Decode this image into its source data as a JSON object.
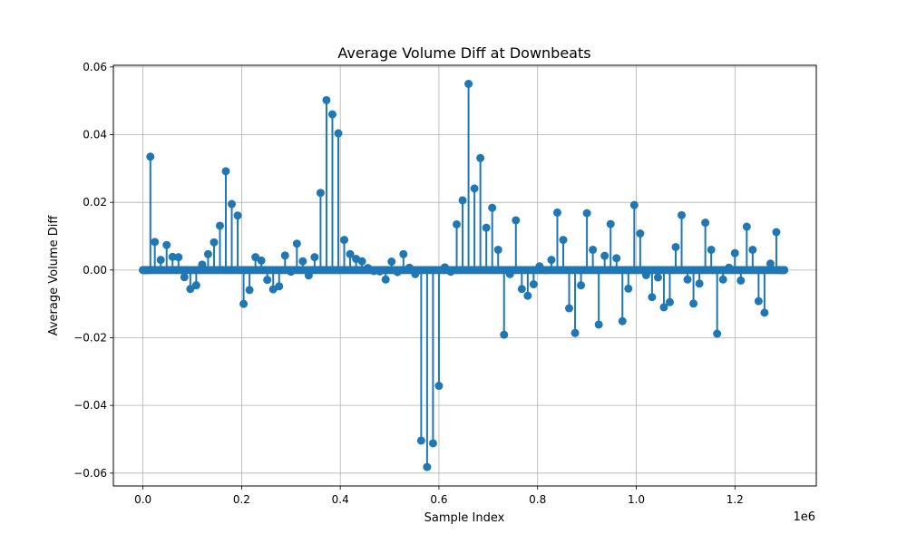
{
  "chart_data": {
    "type": "stem",
    "title": "Average Volume Diff at Downbeats",
    "xlabel": "Sample Index",
    "ylabel": "Average Volume Diff",
    "x_offset_label": "1e6",
    "x_scale": 1000000,
    "xlim": [
      -60000,
      1365000
    ],
    "ylim": [
      -0.0638,
      0.0605
    ],
    "x_ticks": [
      {
        "value": 0,
        "label": "0.0"
      },
      {
        "value": 200000,
        "label": "0.2"
      },
      {
        "value": 400000,
        "label": "0.4"
      },
      {
        "value": 600000,
        "label": "0.6"
      },
      {
        "value": 800000,
        "label": "0.8"
      },
      {
        "value": 1000000,
        "label": "1.0"
      },
      {
        "value": 1200000,
        "label": "1.2"
      }
    ],
    "y_ticks": [
      {
        "value": 0.06,
        "label": "0.06"
      },
      {
        "value": 0.04,
        "label": "0.04"
      },
      {
        "value": 0.02,
        "label": "0.02"
      },
      {
        "value": 0.0,
        "label": "0.00"
      },
      {
        "value": -0.02,
        "label": "−0.02"
      },
      {
        "value": -0.04,
        "label": "−0.04"
      },
      {
        "value": -0.06,
        "label": "−0.06"
      }
    ],
    "grid": true,
    "color": "#1f77b4",
    "baseline": 0,
    "x": [
      0,
      3000,
      6000,
      9000,
      12000,
      15000,
      24000,
      36000,
      48000,
      60000,
      72000,
      84000,
      96000,
      108000,
      120000,
      132000,
      144000,
      156000,
      168000,
      180000,
      192000,
      204000,
      216000,
      228000,
      240000,
      252000,
      264000,
      276000,
      288000,
      300000,
      312000,
      324000,
      336000,
      348000,
      360000,
      372000,
      384000,
      396000,
      408000,
      420000,
      432000,
      444000,
      456000,
      468000,
      480000,
      492000,
      504000,
      516000,
      528000,
      540000,
      552000,
      564000,
      576000,
      588000,
      600000,
      612000,
      624000,
      636000,
      648000,
      660000,
      672000,
      684000,
      696000,
      708000,
      720000,
      732000,
      744000,
      756000,
      768000,
      780000,
      792000,
      804000,
      816000,
      828000,
      840000,
      852000,
      864000,
      876000,
      888000,
      900000,
      912000,
      924000,
      936000,
      948000,
      960000,
      972000,
      984000,
      996000,
      1008000,
      1020000,
      1032000,
      1044000,
      1056000,
      1068000,
      1080000,
      1092000,
      1104000,
      1116000,
      1128000,
      1140000,
      1152000,
      1164000,
      1176000,
      1188000,
      1200000,
      1212000,
      1224000,
      1236000,
      1248000,
      1260000,
      1272000,
      1284000,
      1290000,
      1296000,
      1300000
    ],
    "y": [
      0.0,
      0.0,
      0.0,
      0.0,
      0.0,
      0.0335,
      0.0083,
      0.003,
      0.0074,
      0.0039,
      0.0038,
      -0.0021,
      -0.0056,
      -0.0045,
      0.0016,
      0.0047,
      0.0082,
      0.0131,
      0.0292,
      0.0195,
      0.0161,
      -0.01,
      -0.0059,
      0.0038,
      0.0028,
      -0.0029,
      -0.0057,
      -0.0048,
      0.0043,
      -0.0005,
      0.0078,
      0.0026,
      -0.0016,
      0.0038,
      0.0228,
      0.0502,
      0.046,
      0.0404,
      0.0089,
      0.0047,
      0.0033,
      0.0026,
      0.0006,
      -0.0003,
      -0.0004,
      -0.0028,
      0.0025,
      -0.0006,
      0.0047,
      0.0007,
      -0.0012,
      -0.0504,
      -0.0582,
      -0.0512,
      -0.0342,
      0.0008,
      -0.0005,
      0.0135,
      0.0206,
      0.055,
      0.0241,
      0.0331,
      0.0125,
      0.0184,
      0.006,
      -0.0191,
      -0.0012,
      0.0147,
      -0.0056,
      -0.0076,
      -0.0042,
      0.0011,
      0.0,
      0.003,
      0.017,
      0.0089,
      -0.0113,
      -0.0186,
      -0.0045,
      0.0168,
      0.006,
      -0.0161,
      0.0042,
      0.0136,
      0.0035,
      -0.0151,
      -0.0055,
      0.0192,
      0.0108,
      -0.0015,
      -0.008,
      -0.0022,
      -0.011,
      -0.0095,
      0.0068,
      0.0162,
      -0.0028,
      -0.0099,
      -0.004,
      0.014,
      0.006,
      -0.0188,
      -0.0028,
      0.0007,
      0.005,
      -0.0031,
      0.0128,
      0.006,
      -0.0092,
      -0.0126,
      0.0019,
      0.0112,
      0.0,
      0.0,
      0.0
    ]
  }
}
